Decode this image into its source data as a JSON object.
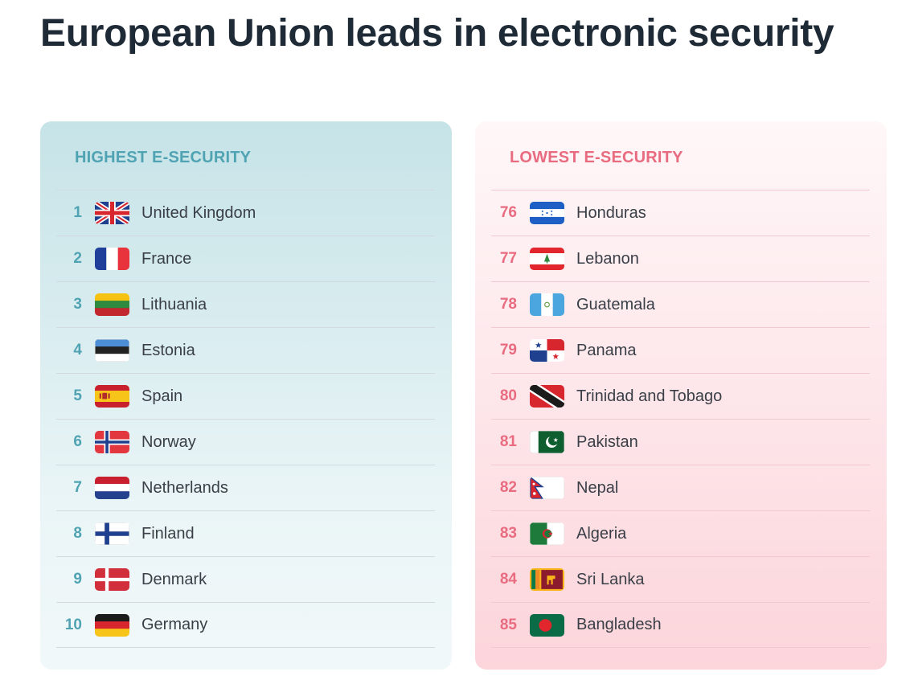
{
  "title": "European Union leads in electronic security",
  "highest": {
    "heading": "HIGHEST E-SECURITY",
    "rows": [
      {
        "rank": "1",
        "country": "United Kingdom",
        "flag": "uk-flag-icon"
      },
      {
        "rank": "2",
        "country": "France",
        "flag": "france-flag-icon"
      },
      {
        "rank": "3",
        "country": "Lithuania",
        "flag": "lithuania-flag-icon"
      },
      {
        "rank": "4",
        "country": "Estonia",
        "flag": "estonia-flag-icon"
      },
      {
        "rank": "5",
        "country": "Spain",
        "flag": "spain-flag-icon"
      },
      {
        "rank": "6",
        "country": "Norway",
        "flag": "norway-flag-icon"
      },
      {
        "rank": "7",
        "country": "Netherlands",
        "flag": "netherlands-flag-icon"
      },
      {
        "rank": "8",
        "country": "Finland",
        "flag": "finland-flag-icon"
      },
      {
        "rank": "9",
        "country": "Denmark",
        "flag": "denmark-flag-icon"
      },
      {
        "rank": "10",
        "country": "Germany",
        "flag": "germany-flag-icon"
      }
    ]
  },
  "lowest": {
    "heading": "LOWEST E-SECURITY",
    "rows": [
      {
        "rank": "76",
        "country": "Honduras",
        "flag": "honduras-flag-icon"
      },
      {
        "rank": "77",
        "country": "Lebanon",
        "flag": "lebanon-flag-icon"
      },
      {
        "rank": "78",
        "country": "Guatemala",
        "flag": "guatemala-flag-icon"
      },
      {
        "rank": "79",
        "country": "Panama",
        "flag": "panama-flag-icon"
      },
      {
        "rank": "80",
        "country": "Trinidad and Tobago",
        "flag": "trinidad-and-tobago-flag-icon"
      },
      {
        "rank": "81",
        "country": "Pakistan",
        "flag": "pakistan-flag-icon"
      },
      {
        "rank": "82",
        "country": "Nepal",
        "flag": "nepal-flag-icon"
      },
      {
        "rank": "83",
        "country": "Algeria",
        "flag": "algeria-flag-icon"
      },
      {
        "rank": "84",
        "country": "Sri Lanka",
        "flag": "sri-lanka-flag-icon"
      },
      {
        "rank": "85",
        "country": "Bangladesh",
        "flag": "bangladesh-flag-icon"
      }
    ]
  },
  "colors": {
    "high_accent": "#4fa3b3",
    "low_accent": "#e96b80",
    "title": "#1f2a37"
  }
}
